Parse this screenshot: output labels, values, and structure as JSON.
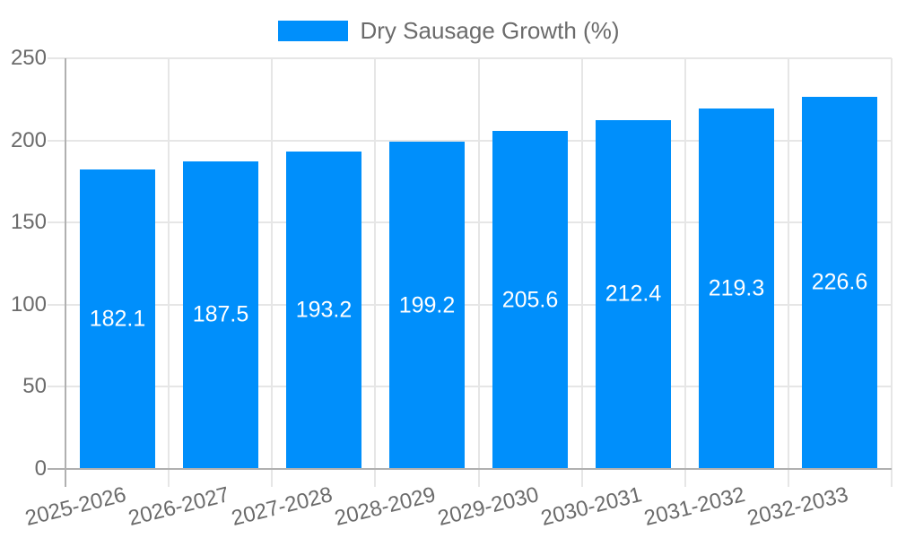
{
  "legend": {
    "label": "Dry Sausage Growth (%)"
  },
  "colors": {
    "bar": "#008FFB",
    "gridline": "#e6e6e6",
    "axis_line": "#b0b0b0",
    "tick_text": "#6b6b6b",
    "data_label_text": "#ffffff",
    "background": "#ffffff"
  },
  "chart_data": {
    "type": "bar",
    "title": "",
    "xlabel": "",
    "ylabel": "",
    "categories": [
      "2025-2026",
      "2026-2027",
      "2027-2028",
      "2028-2029",
      "2029-2030",
      "2030-2031",
      "2031-2032",
      "2032-2033"
    ],
    "series": [
      {
        "name": "Dry Sausage Growth (%)",
        "values": [
          182.1,
          187.5,
          193.2,
          199.2,
          205.6,
          212.4,
          219.3,
          226.6
        ]
      }
    ],
    "ylim": [
      0,
      250
    ],
    "yticks": [
      0,
      50,
      100,
      150,
      200,
      250
    ],
    "grid": true,
    "data_labels": "centered-inside-bars",
    "legend_position": "top",
    "x_label_rotation_deg": -14
  }
}
